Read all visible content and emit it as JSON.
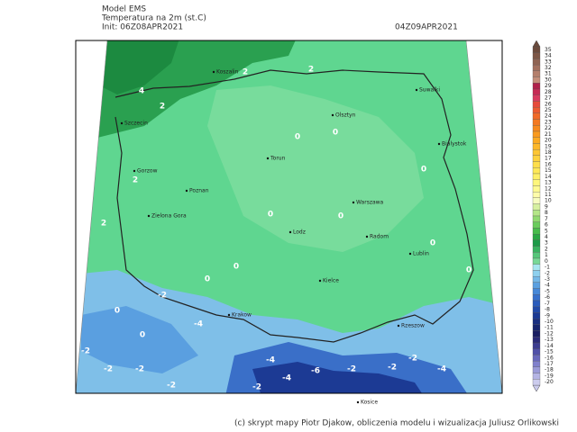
{
  "header": {
    "model": "Model EMS",
    "variable": "Temperatura na 2m (st.C)",
    "init": "Init: 06Z08APR2021",
    "valid": "04Z09APR2021"
  },
  "credit": "(c) skrypt mapy Piotr Djakow, obliczenia modelu i wizualizacja Juliusz Orlikowski",
  "colorbar": {
    "levels": [
      35,
      34,
      33,
      32,
      31,
      30,
      29,
      28,
      27,
      26,
      25,
      24,
      23,
      22,
      21,
      20,
      19,
      18,
      17,
      16,
      15,
      14,
      13,
      12,
      11,
      10,
      9,
      8,
      7,
      6,
      5,
      4,
      3,
      2,
      1,
      0,
      -1,
      -2,
      -3,
      -4,
      -5,
      -6,
      -7,
      -8,
      -9,
      -10,
      -11,
      -12,
      -13,
      -14,
      -15,
      -16,
      -17,
      -18,
      -19,
      -20
    ],
    "colors": [
      "#6b4a3c",
      "#7d5646",
      "#8f6352",
      "#a3705e",
      "#b47f6c",
      "#c48e7a",
      "#b0204a",
      "#c62a55",
      "#d83a60",
      "#e64a3a",
      "#ec5a30",
      "#f06a28",
      "#f47a22",
      "#f78a1e",
      "#f99a1e",
      "#fbaa22",
      "#fcb82a",
      "#fdc634",
      "#fdd23e",
      "#fede4a",
      "#fee858",
      "#fef068",
      "#fef67c",
      "#fefa92",
      "#fefcaa",
      "#f6fcc0",
      "#d6f0a0",
      "#b4e688",
      "#90da70",
      "#6acc5c",
      "#48bc4c",
      "#2aa844",
      "#1c9a48",
      "#38b260",
      "#56c67a",
      "#78d896",
      "#a8e6f0",
      "#8ed0ee",
      "#74b8e8",
      "#5aa0e0",
      "#4688d8",
      "#3670cc",
      "#2a5cbc",
      "#224aa8",
      "#1c3a94",
      "#182e80",
      "#16246e",
      "#1a1e62",
      "#2a2a78",
      "#3c3c90",
      "#5050a8",
      "#6868bc",
      "#8080cc",
      "#9a9ad8",
      "#b4b4e4",
      "#ccccee"
    ]
  },
  "cities": [
    "Koszalin",
    "Suwalki",
    "Olsztyn",
    "Szczecin",
    "Bialystok",
    "Gorzow",
    "Torun",
    "Poznan",
    "Zielona Gora",
    "Warszawa",
    "Lodz",
    "Lublin",
    "Radom",
    "Kielce",
    "Krakow",
    "Rzeszow",
    "Kosice"
  ],
  "contour_labels": [
    4,
    2,
    2,
    2,
    2,
    0,
    0,
    0,
    0,
    0,
    2,
    0,
    0,
    0,
    0,
    0,
    -2,
    -2,
    -2,
    -4,
    -2,
    -2,
    -4,
    -6,
    -2,
    -2,
    -4,
    -2,
    -4,
    -2,
    0
  ]
}
